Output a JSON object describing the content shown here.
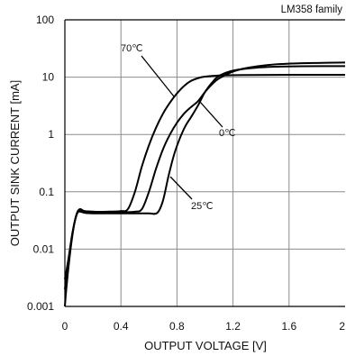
{
  "chart_data": {
    "type": "line",
    "title": "LM358 family",
    "xlabel": "OUTPUT VOLTAGE [V]",
    "ylabel": "OUTPUT SINK CURRENT [mA]",
    "xlim": [
      0,
      2
    ],
    "ylim": [
      0.001,
      100
    ],
    "yscale": "log",
    "grid": true,
    "x_ticks": [
      0,
      0.4,
      0.8,
      1.2,
      1.6,
      2
    ],
    "y_ticks": [
      0.001,
      0.01,
      0.1,
      1,
      10,
      100
    ],
    "series": [
      {
        "name": "70℃",
        "x": [
          0,
          0.01,
          0.03,
          0.05,
          0.07,
          0.09,
          0.11,
          0.14,
          0.2,
          0.3,
          0.4,
          0.45,
          0.5,
          0.55,
          0.6,
          0.65,
          0.7,
          0.75,
          0.8,
          0.85,
          0.9,
          0.95,
          1.0,
          1.1,
          1.3,
          1.6,
          2.0
        ],
        "y": [
          0.001,
          0.002,
          0.006,
          0.015,
          0.03,
          0.045,
          0.05,
          0.046,
          0.045,
          0.045,
          0.046,
          0.05,
          0.1,
          0.28,
          0.65,
          1.3,
          2.3,
          3.6,
          5.2,
          7,
          8.6,
          9.6,
          10.2,
          10.7,
          10.9,
          11,
          11
        ]
      },
      {
        "name": "0℃",
        "x": [
          0,
          0.01,
          0.03,
          0.05,
          0.07,
          0.09,
          0.11,
          0.14,
          0.2,
          0.3,
          0.4,
          0.5,
          0.55,
          0.6,
          0.65,
          0.7,
          0.75,
          0.8,
          0.85,
          0.9,
          0.95,
          1.0,
          1.05,
          1.1,
          1.2,
          1.3,
          1.45,
          1.6,
          1.8,
          2.0
        ],
        "y": [
          0.002,
          0.003,
          0.007,
          0.016,
          0.03,
          0.044,
          0.048,
          0.046,
          0.045,
          0.044,
          0.044,
          0.045,
          0.05,
          0.1,
          0.25,
          0.55,
          1.0,
          1.6,
          2.3,
          3.0,
          3.8,
          5.5,
          7.5,
          9.5,
          12.5,
          14.5,
          16.3,
          17.2,
          17.7,
          18
        ]
      },
      {
        "name": "25℃",
        "x": [
          0,
          0.01,
          0.03,
          0.05,
          0.07,
          0.09,
          0.11,
          0.14,
          0.2,
          0.3,
          0.4,
          0.5,
          0.6,
          0.66,
          0.7,
          0.74,
          0.78,
          0.82,
          0.86,
          0.9,
          0.95,
          1.0,
          1.05,
          1.1,
          1.2,
          1.35,
          1.5,
          1.7,
          2.0
        ],
        "y": [
          0.003,
          0.004,
          0.008,
          0.017,
          0.03,
          0.043,
          0.045,
          0.043,
          0.042,
          0.042,
          0.042,
          0.042,
          0.042,
          0.043,
          0.07,
          0.19,
          0.45,
          0.85,
          1.4,
          2.0,
          3.2,
          5.5,
          8.0,
          10.5,
          13,
          14.5,
          15.2,
          15.5,
          15.6
        ]
      }
    ]
  },
  "colors": {
    "line": "#000000",
    "grid": "#8c8c8c",
    "axis": "#000000"
  }
}
